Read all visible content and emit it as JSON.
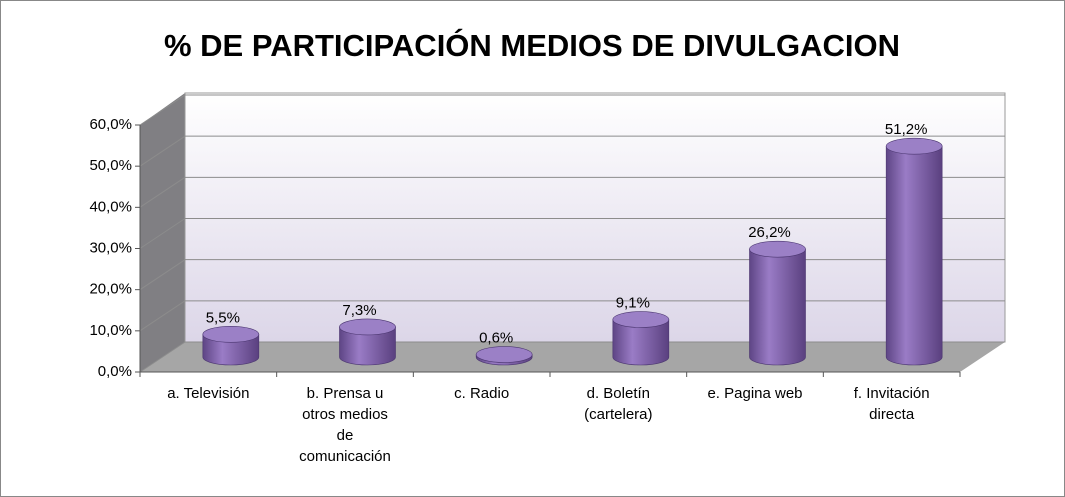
{
  "chart_data": {
    "type": "bar3d",
    "title": "% DE PARTICIPACIÓN MEDIOS DE DIVULGACION",
    "categories": [
      "a. Televisión",
      "b. Prensa u otros medios de comunicación",
      "c. Radio",
      "d. Boletín (cartelera)",
      "e. Pagina web",
      "f. Invitación directa"
    ],
    "values": [
      5.5,
      7.3,
      0.6,
      9.1,
      26.2,
      51.2
    ],
    "value_labels": [
      "5,5%",
      "7,3%",
      "0,6%",
      "9,1%",
      "26,2%",
      "51,2%"
    ],
    "color": "#8064a2",
    "ylim": [
      0,
      60
    ],
    "yticks": [
      {
        "value": 0,
        "label": "0,0%"
      },
      {
        "value": 10,
        "label": "10,0%"
      },
      {
        "value": 20,
        "label": "20,0%"
      },
      {
        "value": 30,
        "label": "30,0%"
      },
      {
        "value": 40,
        "label": "40,0%"
      },
      {
        "value": 50,
        "label": "50,0%"
      },
      {
        "value": 60,
        "label": "60,0%"
      }
    ],
    "grid": true
  }
}
